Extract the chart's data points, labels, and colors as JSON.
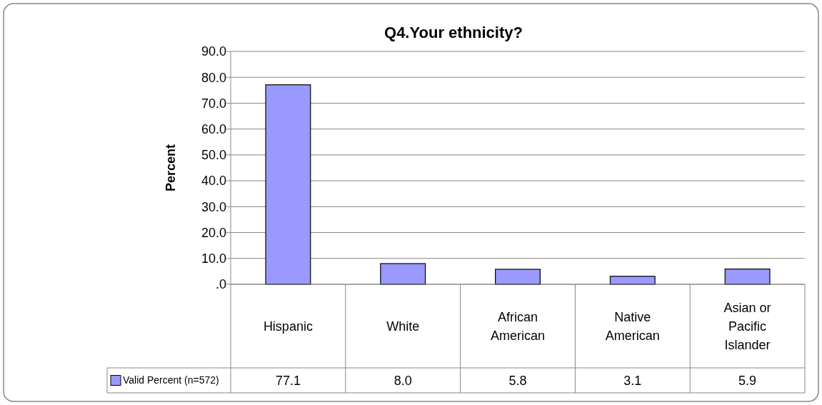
{
  "chart_data": {
    "type": "bar",
    "title": "Q4.Your ethnicity?",
    "ylabel": "Percent",
    "categories": [
      "Hispanic",
      "White",
      "African American",
      "Native American",
      "Asian or Pacific Islander"
    ],
    "series": [
      {
        "name": "Valid Percent (n=572)",
        "color": "#9999ff",
        "values": [
          77.1,
          8.0,
          5.8,
          3.1,
          5.9
        ],
        "value_labels": [
          "77.1",
          "8.0",
          "5.8",
          "3.1",
          "5.9"
        ]
      }
    ],
    "ylim": [
      0,
      90
    ],
    "yticks": [
      {
        "value": 0,
        "label": ".0"
      },
      {
        "value": 10,
        "label": "10.0"
      },
      {
        "value": 20,
        "label": "20.0"
      },
      {
        "value": 30,
        "label": "30.0"
      },
      {
        "value": 40,
        "label": "40.0"
      },
      {
        "value": 50,
        "label": "50.0"
      },
      {
        "value": 60,
        "label": "60.0"
      },
      {
        "value": 70,
        "label": "70.0"
      },
      {
        "value": 80,
        "label": "80.0"
      },
      {
        "value": 90,
        "label": "90.0"
      }
    ],
    "grid": "y",
    "legend": "bottom"
  }
}
